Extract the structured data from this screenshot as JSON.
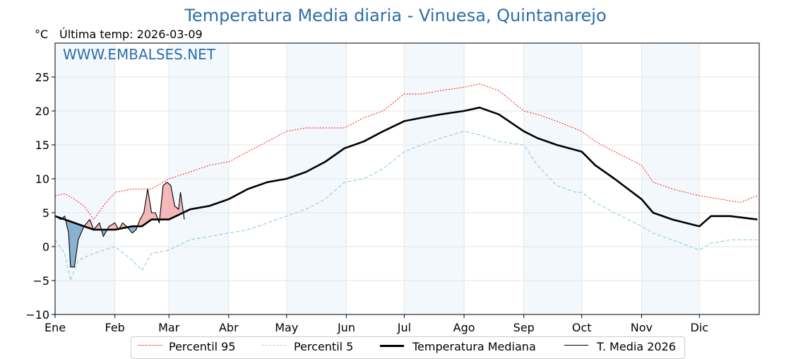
{
  "chart_data": {
    "type": "line",
    "title": "Temperatura Media diaria - Vinuesa, Quintanarejo",
    "unit_label": "°C",
    "last_temp_label": "Última temp: 2026-03-09",
    "watermark": "WWW.EMBALSES.NET",
    "ylim": [
      -10,
      30
    ],
    "yticks": [
      -10,
      -5,
      0,
      5,
      10,
      15,
      20,
      25
    ],
    "ytick_labels": [
      "−10",
      "−5",
      "0",
      "5",
      "10",
      "15",
      "20",
      "25"
    ],
    "xlim": [
      0,
      365
    ],
    "months": [
      {
        "label": "Ene",
        "day": 0
      },
      {
        "label": "Feb",
        "day": 31
      },
      {
        "label": "Mar",
        "day": 59
      },
      {
        "label": "Abr",
        "day": 90
      },
      {
        "label": "May",
        "day": 120
      },
      {
        "label": "Jun",
        "day": 151
      },
      {
        "label": "Jul",
        "day": 181
      },
      {
        "label": "Ago",
        "day": 212
      },
      {
        "label": "Sep",
        "day": 243
      },
      {
        "label": "Oct",
        "day": 273
      },
      {
        "label": "Nov",
        "day": 304
      },
      {
        "label": "Dic",
        "day": 334
      }
    ],
    "shaded_month_indices": [
      0,
      2,
      4,
      6,
      8,
      10
    ],
    "series": [
      {
        "name": "Percentil 95",
        "color": "#ff0000",
        "style": "dotted",
        "x": [
          0,
          5,
          10,
          15,
          20,
          25,
          31,
          40,
          50,
          59,
          70,
          80,
          90,
          100,
          110,
          120,
          130,
          140,
          150,
          160,
          170,
          181,
          190,
          200,
          212,
          220,
          230,
          243,
          250,
          260,
          273,
          280,
          290,
          304,
          310,
          320,
          334,
          345,
          355,
          364
        ],
        "y": [
          7.5,
          7.8,
          7,
          6,
          4,
          6,
          8,
          8.5,
          8.5,
          10,
          11,
          12,
          12.5,
          14,
          15.5,
          17,
          17.5,
          17.5,
          17.5,
          19,
          20,
          22.5,
          22.5,
          23,
          23.5,
          24,
          23,
          20,
          19.5,
          18.5,
          17,
          15.5,
          14,
          12,
          9.5,
          8.5,
          7.5,
          7,
          6.5,
          7.5
        ]
      },
      {
        "name": "Percentil 5",
        "color": "#9fd3e6",
        "style": "dashed",
        "x": [
          0,
          5,
          8,
          12,
          20,
          31,
          40,
          45,
          50,
          59,
          70,
          80,
          90,
          100,
          110,
          120,
          130,
          140,
          150,
          160,
          170,
          181,
          190,
          200,
          212,
          220,
          230,
          243,
          250,
          260,
          270,
          273,
          280,
          290,
          304,
          310,
          320,
          334,
          340,
          350,
          364
        ],
        "y": [
          1,
          -1,
          -5,
          -2,
          -1,
          0,
          -2,
          -3.5,
          -1,
          -0.5,
          1,
          1.5,
          2,
          2.5,
          3.5,
          4.5,
          5.5,
          7,
          9.5,
          10,
          11.5,
          14,
          15,
          16,
          17,
          16.5,
          15.5,
          15,
          12,
          9,
          8,
          8,
          6.5,
          5,
          3,
          2,
          1,
          -0.5,
          0.5,
          1,
          1
        ]
      },
      {
        "name": "Temperatura Mediana",
        "color": "#000000",
        "style": "solid-thick",
        "x": [
          0,
          10,
          20,
          31,
          40,
          45,
          50,
          59,
          70,
          80,
          90,
          100,
          110,
          120,
          130,
          140,
          150,
          160,
          170,
          181,
          190,
          200,
          212,
          220,
          230,
          243,
          250,
          260,
          273,
          280,
          290,
          304,
          310,
          320,
          334,
          340,
          350,
          364
        ],
        "y": [
          4.5,
          3.5,
          2.5,
          2.5,
          3,
          3,
          4,
          4,
          5.5,
          6,
          7,
          8.5,
          9.5,
          10,
          11,
          12.5,
          14.5,
          15.5,
          17,
          18.5,
          19,
          19.5,
          20,
          20.5,
          19.5,
          17,
          16,
          15,
          14,
          12,
          10,
          7,
          5,
          4,
          3,
          4.5,
          4.5,
          4
        ]
      },
      {
        "name": "T. Media 2026",
        "color": "#000000",
        "style": "solid-thin",
        "x": [
          0,
          3,
          5,
          7,
          8,
          10,
          12,
          15,
          18,
          20,
          23,
          25,
          28,
          31,
          33,
          35,
          37,
          40,
          42,
          44,
          46,
          48,
          50,
          52,
          54,
          56,
          58,
          60,
          62,
          64,
          65,
          67
        ],
        "y": [
          4.5,
          4,
          4.5,
          2,
          -3,
          -3,
          1,
          3,
          4,
          2.5,
          3.5,
          1.5,
          3,
          3.5,
          2.5,
          3.5,
          3,
          2,
          2.5,
          4,
          5,
          8.5,
          5,
          5,
          3.5,
          9,
          9.5,
          9,
          6,
          5.5,
          8,
          4
        ]
      }
    ],
    "fill_between_2026_and_median": {
      "above_color": "#f4a8a8",
      "below_color": "#7fa8cc"
    }
  },
  "legend": {
    "items": [
      {
        "label": "Percentil 95",
        "color": "#ff0000"
      },
      {
        "label": "Percentil 5",
        "color": "#9fd3e6"
      },
      {
        "label": "Temperatura Mediana",
        "color": "#000000"
      },
      {
        "label": "T. Media 2026",
        "color": "#000000"
      }
    ]
  }
}
